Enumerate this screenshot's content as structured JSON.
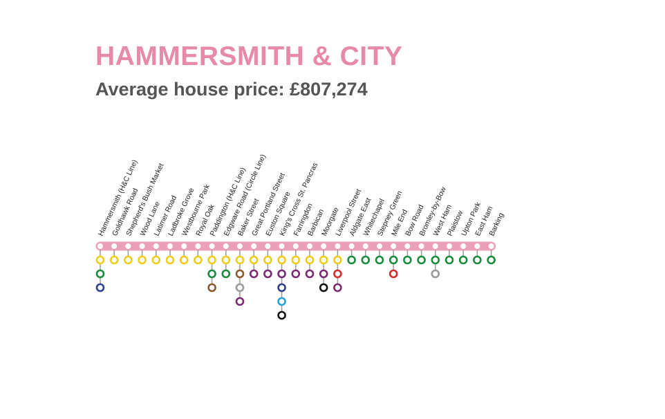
{
  "title": "HAMMERSMITH & CITY",
  "subtitle": "Average house price: £807,274",
  "colors": {
    "title": "#e68aa8",
    "subtitle": "#555555",
    "line": "#e9a0b8",
    "label": "#222222",
    "interchange": {
      "circle": "#f0cc1a",
      "district": "#1a8a3c",
      "piccadilly": "#2f3f8a",
      "bakerloo": "#8a5a2a",
      "jubilee": "#9a9a9a",
      "metropolitan": "#7a2a72",
      "victoria": "#2aa0d8",
      "northern": "#111111",
      "central": "#d42a2a"
    }
  },
  "stations": [
    {
      "name": "Hammersmith (H&C Line)",
      "connections": [
        "circle",
        "district",
        "piccadilly"
      ]
    },
    {
      "name": "Goldhawk Road",
      "connections": [
        "circle"
      ]
    },
    {
      "name": "Shepherd's Bush Market",
      "connections": [
        "circle"
      ]
    },
    {
      "name": "Wood Lane",
      "connections": [
        "circle"
      ]
    },
    {
      "name": "Latimer Road",
      "connections": [
        "circle"
      ]
    },
    {
      "name": "Ladbroke Grove",
      "connections": [
        "circle"
      ]
    },
    {
      "name": "Westbourne Park",
      "connections": [
        "circle"
      ]
    },
    {
      "name": "Royal Oak",
      "connections": [
        "circle"
      ]
    },
    {
      "name": "Paddington (H&C Line)",
      "connections": [
        "circle",
        "district",
        "bakerloo"
      ]
    },
    {
      "name": "Edgware Road (Circle Line)",
      "connections": [
        "circle",
        "district"
      ]
    },
    {
      "name": "Baker Street",
      "connections": [
        "circle",
        "bakerloo",
        "jubilee",
        "metropolitan"
      ]
    },
    {
      "name": "Great Portland Street",
      "connections": [
        "circle",
        "metropolitan"
      ]
    },
    {
      "name": "Euston Square",
      "connections": [
        "circle",
        "metropolitan"
      ]
    },
    {
      "name": "King's Cross St. Pancras",
      "connections": [
        "circle",
        "metropolitan",
        "piccadilly",
        "victoria",
        "northern"
      ]
    },
    {
      "name": "Farringdon",
      "connections": [
        "circle",
        "metropolitan"
      ]
    },
    {
      "name": "Barbican",
      "connections": [
        "circle",
        "metropolitan"
      ]
    },
    {
      "name": "Moorgate",
      "connections": [
        "circle",
        "metropolitan",
        "northern"
      ]
    },
    {
      "name": "Liverpool Street",
      "connections": [
        "circle",
        "central",
        "metropolitan"
      ]
    },
    {
      "name": "Aldgate East",
      "connections": [
        "district"
      ]
    },
    {
      "name": "Whitechapel",
      "connections": [
        "district"
      ]
    },
    {
      "name": "Stepney Green",
      "connections": [
        "district"
      ]
    },
    {
      "name": "Mile End",
      "connections": [
        "district",
        "central"
      ]
    },
    {
      "name": "Bow Road",
      "connections": [
        "district"
      ]
    },
    {
      "name": "Bromley-by-Bow",
      "connections": [
        "district"
      ]
    },
    {
      "name": "West Ham",
      "connections": [
        "district",
        "jubilee"
      ]
    },
    {
      "name": "Plaistow",
      "connections": [
        "district"
      ]
    },
    {
      "name": "Upton Park",
      "connections": [
        "district"
      ]
    },
    {
      "name": "East Ham",
      "connections": [
        "district"
      ]
    },
    {
      "name": "Barking",
      "connections": [
        "district"
      ]
    }
  ]
}
